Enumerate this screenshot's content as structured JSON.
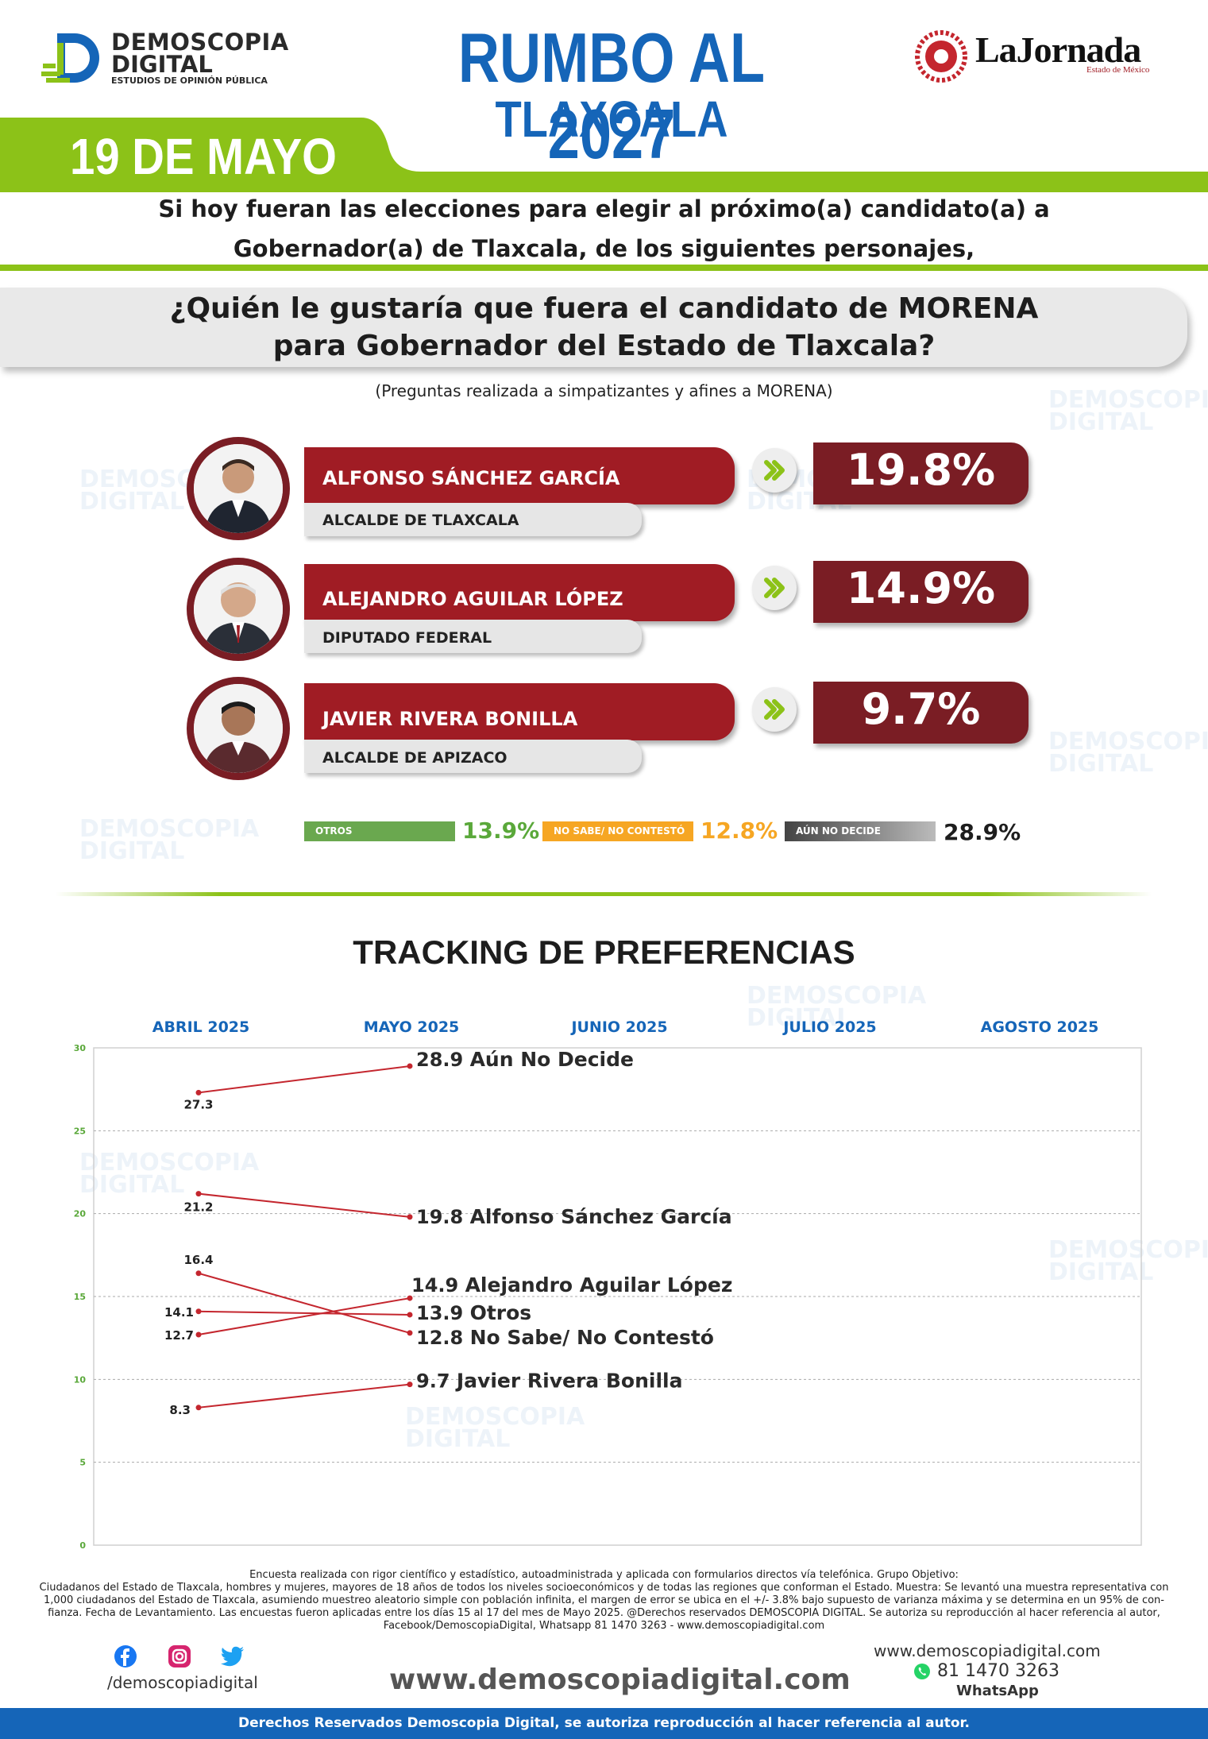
{
  "header": {
    "brand_line1": "DEMOSCOPIA",
    "brand_line2": "DIGITAL",
    "brand_tagline": "ESTUDIOS DE OPINIÓN PÚBLICA",
    "title": "RUMBO AL 2027",
    "subtitle": "TLAXCALA",
    "partner": "LaJornada",
    "partner_sub": "Estado de México",
    "date": "19 DE MAYO"
  },
  "intro": {
    "line1": "Si hoy fueran las elecciones para elegir al próximo(a) candidato(a) a",
    "line2": "Gobernador(a) de Tlaxcala, de los siguientes personajes,"
  },
  "question": {
    "line1": "¿Quién le gustaría que fuera el candidato de MORENA",
    "line2": "para Gobernador del Estado de Tlaxcala?",
    "note": "(Preguntas realizada a simpatizantes y afines a MORENA)"
  },
  "candidates": [
    {
      "name": "ALFONSO SÁNCHEZ GARCÍA",
      "role": "ALCALDE DE TLAXCALA",
      "pct": "19.8%"
    },
    {
      "name": "ALEJANDRO AGUILAR LÓPEZ",
      "role": "DIPUTADO FEDERAL",
      "pct": "14.9%"
    },
    {
      "name": "JAVIER RIVERA BONILLA",
      "role": "ALCALDE DE APIZACO",
      "pct": "9.7%"
    }
  ],
  "others": [
    {
      "label": "OTROS",
      "value": "13.9%",
      "color": "#6aa84f"
    },
    {
      "label": "NO SABE/ NO CONTESTÓ",
      "value": "12.8%",
      "color": "#f6a623"
    },
    {
      "label": "AÚN NO DECIDE",
      "value": "28.9%",
      "color": "#555555"
    }
  ],
  "colors": {
    "blue": "#1565b8",
    "green": "#8cc218",
    "maroon": "#a01c24",
    "dark_maroon": "#7a1d24"
  },
  "chart_data": {
    "type": "line",
    "title": "TRACKING DE PREFERENCIAS",
    "months": [
      "ABRIL 2025",
      "MAYO 2025",
      "JUNIO 2025",
      "JULIO 2025",
      "AGOSTO 2025"
    ],
    "ylim": [
      0,
      30
    ],
    "yticks": [
      0,
      5,
      10,
      15,
      20,
      25,
      30
    ],
    "grid": true,
    "series": [
      {
        "name": "Aún No Decide",
        "values": [
          27.3,
          28.9
        ],
        "start_label": "27.3",
        "end_label": "28.9"
      },
      {
        "name": "Alfonso Sánchez García",
        "values": [
          21.2,
          19.8
        ],
        "start_label": "21.2",
        "end_label": "19.8"
      },
      {
        "name": "Alejandro Aguilar López",
        "values": [
          12.7,
          14.9
        ],
        "start_label": "12.7",
        "end_label": "14.9"
      },
      {
        "name": "Otros",
        "values": [
          14.1,
          13.9
        ],
        "start_label": "14.1",
        "end_label": "13.9"
      },
      {
        "name": "No Sabe/ No Contestó",
        "values": [
          16.4,
          12.8
        ],
        "start_label": "16.4",
        "end_label": "12.8"
      },
      {
        "name": "Javier Rivera Bonilla",
        "values": [
          8.3,
          9.7
        ],
        "start_label": "8.3",
        "end_label": "9.7"
      }
    ]
  },
  "footer": {
    "note1": "Encuesta realizada con rigor científico y estadístico, autoadministrada y aplicada con formularios directos vía telefónica. Grupo Objetivo:",
    "note2": "Ciudadanos del Estado de Tlaxcala, hombres y mujeres, mayores de 18 años de todos los niveles socioeconómicos y de todas las regiones que conforman el Estado. Muestra: Se levantó una muestra representativa con",
    "note3": "1,000 ciudadanos del Estado de Tlaxcala, asumiendo muestreo aleatorio simple con población infinita, el margen de error se ubica en el +/- 3.8% bajo supuesto de varianza máxima y se determina en un 95% de con-",
    "note4": "fianza. Fecha de Levantamiento. Las encuestas fueron aplicadas entre los días 15 al 17 del mes de Mayo 2025. @Derechos reservados DEMOSCOPIA DIGITAL. Se autoriza su reproducción al hacer referencia al autor,",
    "note5": "Facebook/DemoscopiaDigital, Whatsapp 81 1470 3263 - www.demoscopiadigital.com",
    "handle": "/demoscopiadigital",
    "site": "www.demoscopiadigital.com",
    "site_small": "www.demoscopiadigital.com",
    "phone": "81 1470 3263",
    "whatsapp": "WhatsApp",
    "rights": "Derechos Reservados Demoscopia Digital, se autoriza reproducción al hacer referencia al autor."
  }
}
